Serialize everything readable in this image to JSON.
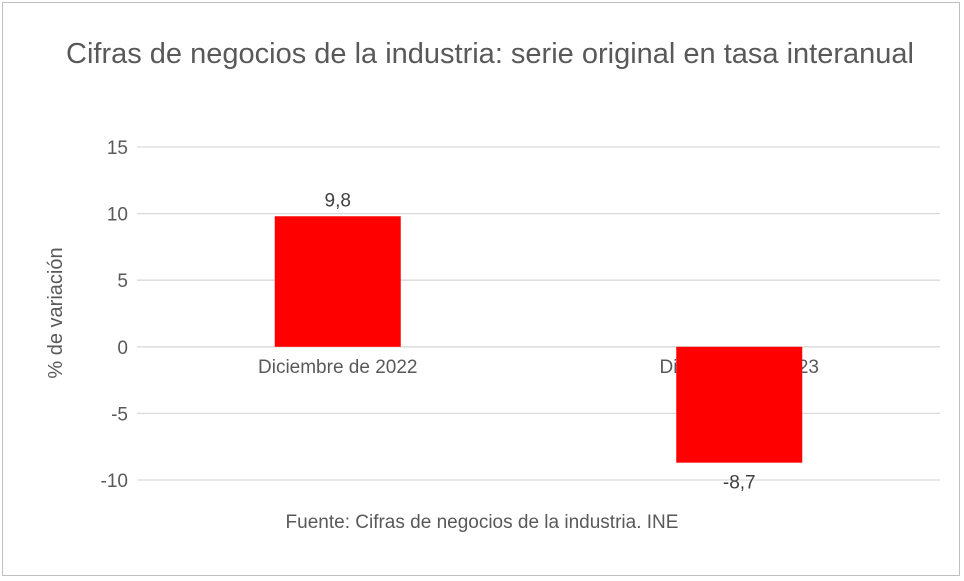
{
  "chart_data": {
    "type": "bar",
    "title": "Cifras de negocios de la industria: serie original en tasa interanual",
    "xlabel": "",
    "ylabel": "% de variación",
    "categories": [
      "Diciembre de 2022",
      "Diciembre de 2023"
    ],
    "values": [
      9.8,
      -8.7
    ],
    "data_labels": [
      "9,8",
      "-8,7"
    ],
    "ylim": [
      -10,
      15
    ],
    "yticks": [
      15,
      10,
      5,
      0,
      -5,
      -10
    ],
    "grid": true,
    "legend": "none",
    "bar_color": "#ff0000",
    "source": "Fuente: Cifras de negocios de la industria. INE"
  }
}
